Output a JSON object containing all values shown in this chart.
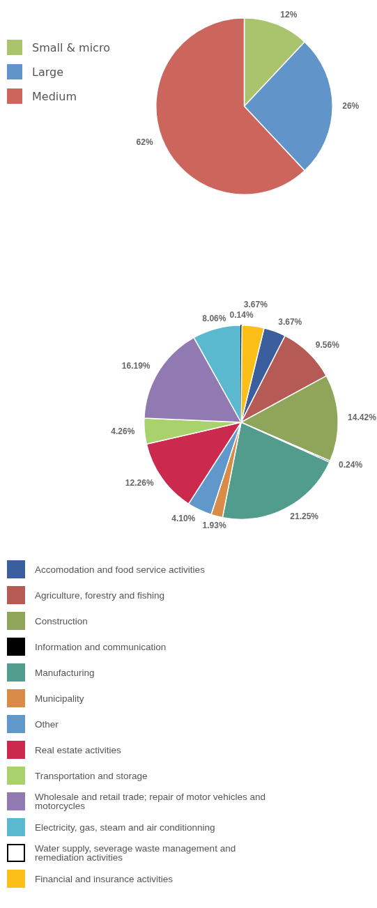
{
  "chart_data": [
    {
      "type": "pie",
      "categories": [
        "Small & micro",
        "Large",
        "Medium"
      ],
      "values": [
        12,
        26,
        62
      ],
      "colors": [
        "#a9c46c",
        "#6194c9",
        "#cc665c"
      ],
      "value_labels": [
        "12%",
        "26%",
        "62%"
      ],
      "legend": "top left"
    },
    {
      "type": "pie",
      "categories": [
        "Accomodation and food service activities",
        "Agriculture, forestry and fishing",
        "Construction",
        "Information and communication",
        "Manufacturing",
        "Municipality",
        "Other",
        "Real estate activities",
        "Transportation and storage",
        "Wholesale and retail trade; repair of motor vehicles and motorcycles",
        "Electricity, gas, steam and air conditionning",
        "Water supply, severage waste management and remediation activities",
        "Financial and insurance activities"
      ],
      "values": [
        3.67,
        9.56,
        14.42,
        0.24,
        21.25,
        1.93,
        4.1,
        12.26,
        4.26,
        16.19,
        8.06,
        0.14,
        3.67
      ],
      "colors": [
        "#3a5f9c",
        "#b55a54",
        "#8ea55a",
        "#000000",
        "#529c8e",
        "#d88c48",
        "#6098cc",
        "#cb2a4e",
        "#a9d26c",
        "#9179b2",
        "#5bb9cf",
        "#ffffff",
        "#fcbf1a"
      ],
      "value_labels": [
        "3.67%",
        "9.56%",
        "14.42%",
        "0.24%",
        "21.25%",
        "1.93%",
        "4.10%",
        "12.26%",
        "4.26%",
        "16.19%",
        "8.06%",
        "0.14%",
        "3.67%"
      ],
      "legend": "bottom"
    }
  ]
}
